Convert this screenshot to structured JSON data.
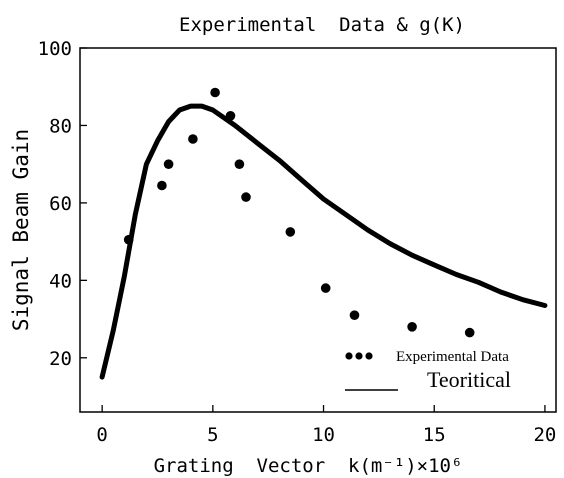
{
  "chart_data": {
    "type": "scatter",
    "title": "Experimental  Data & g(K)",
    "xlabel": "Grating  Vector  k(m⁻¹)×10⁶",
    "ylabel": "Signal Beam Gain",
    "xlim": [
      -1,
      20.5
    ],
    "ylim": [
      6,
      100
    ],
    "xticks": [
      0,
      5,
      10,
      15,
      20
    ],
    "yticks": [
      20,
      40,
      60,
      80,
      100
    ],
    "legend_position": "bottom-right",
    "series": [
      {
        "name": "Experimental Data",
        "kind": "points",
        "x": [
          1.2,
          2.7,
          3.0,
          4.1,
          5.1,
          5.8,
          6.2,
          6.5,
          8.5,
          10.1,
          11.4,
          14.0,
          16.6
        ],
        "y": [
          50.5,
          64.5,
          70.0,
          76.5,
          88.5,
          82.5,
          70.0,
          61.5,
          52.5,
          38.0,
          31.0,
          28.0,
          26.5
        ]
      },
      {
        "name": "Teoritical",
        "kind": "line",
        "x": [
          0,
          0.5,
          1,
          1.5,
          2,
          2.5,
          3,
          3.5,
          4,
          4.5,
          5,
          6,
          7,
          8,
          9,
          10,
          11,
          12,
          13,
          14,
          15,
          16,
          17,
          18,
          19,
          20
        ],
        "y": [
          15,
          27,
          41,
          57,
          70,
          76,
          81,
          84,
          85,
          85,
          84,
          80,
          75.5,
          71,
          66,
          61,
          57,
          53,
          49.5,
          46.5,
          44,
          41.5,
          39.5,
          37,
          35,
          33.5
        ]
      }
    ]
  }
}
